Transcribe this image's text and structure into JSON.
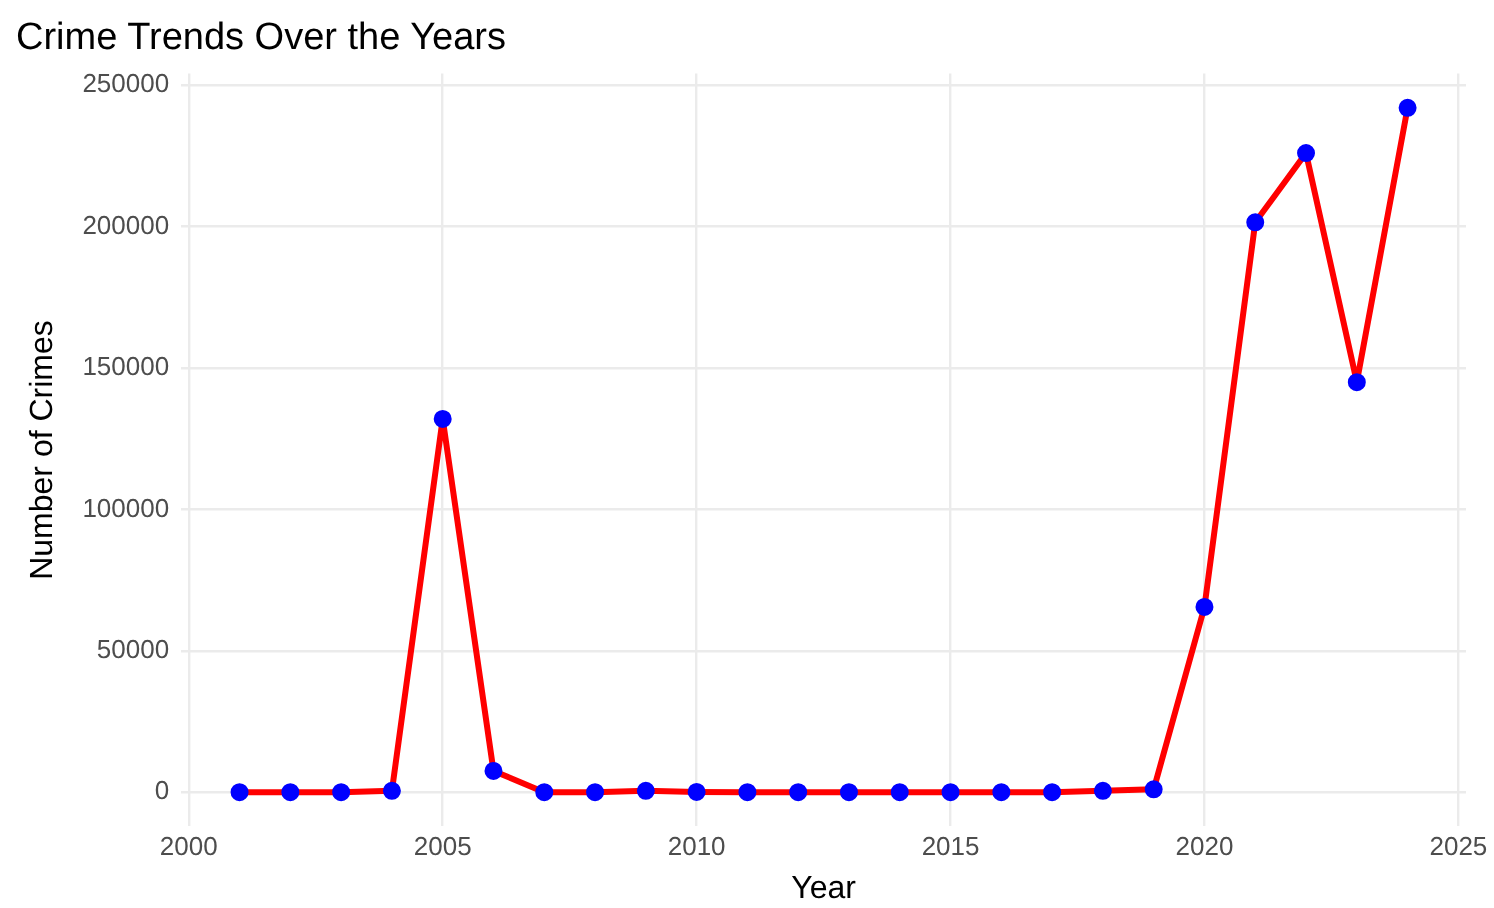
{
  "chart_data": {
    "type": "line",
    "title": "Crime Trends Over the Years",
    "xlabel": "Year",
    "ylabel": "Number of Crimes",
    "x": [
      2001,
      2002,
      2003,
      2004,
      2005,
      2006,
      2007,
      2008,
      2009,
      2010,
      2011,
      2012,
      2013,
      2014,
      2015,
      2016,
      2017,
      2018,
      2019,
      2020,
      2021,
      2022,
      2023,
      2024
    ],
    "series": [
      {
        "type": "line",
        "color": "#ff0000",
        "marker": "none",
        "values": [
          0,
          0,
          0,
          500,
          132000,
          7500,
          0,
          0,
          500,
          100,
          0,
          0,
          0,
          0,
          0,
          0,
          0,
          500,
          1000,
          65500,
          201500,
          226000,
          145000,
          242000
        ]
      },
      {
        "type": "scatter",
        "color": "#0000ff",
        "marker": "circle",
        "values": [
          0,
          0,
          0,
          500,
          132000,
          7500,
          0,
          0,
          500,
          100,
          0,
          0,
          0,
          0,
          0,
          0,
          0,
          500,
          1000,
          65500,
          201500,
          226000,
          145000,
          242000
        ]
      }
    ],
    "xlim": [
      1999.85,
      2025.15
    ],
    "xticks": [
      2000,
      2005,
      2010,
      2015,
      2020,
      2025
    ],
    "ylim": [
      -12100,
      254100
    ],
    "yticks": [
      0,
      50000,
      100000,
      150000,
      200000,
      250000
    ],
    "grid": true,
    "legend": false
  }
}
